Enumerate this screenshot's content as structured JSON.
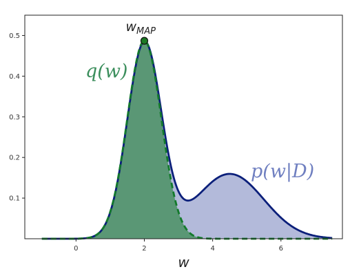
{
  "chart_data": {
    "type": "area",
    "title": "",
    "xlabel": "w",
    "ylabel": "",
    "xlim": [
      -1.5,
      7.8
    ],
    "ylim": [
      0,
      0.55
    ],
    "x_ticks": [
      0,
      2,
      4,
      6
    ],
    "y_ticks": [
      0.1,
      0.2,
      0.3,
      0.4,
      0.5
    ],
    "x_tick_labels": [
      "0",
      "2",
      "4",
      "6"
    ],
    "y_tick_labels": [
      "0.1",
      "0.2",
      "0.3",
      "0.4",
      "0.5"
    ],
    "grid": false,
    "x_range": [
      -1,
      7.5
    ],
    "series": [
      {
        "id": "posterior",
        "label": "p(w|D)",
        "style": "solid",
        "components": [
          {
            "weight": 0.6,
            "mean": 2.0,
            "sd": 0.5
          },
          {
            "weight": 0.4,
            "mean": 4.5,
            "sd": 1.0
          }
        ],
        "line_color": "#0b1f7a",
        "fill_color": "#b3bada",
        "label_color": "#6f7fc0"
      },
      {
        "id": "approximation",
        "label": "q(w)",
        "style": "dashed",
        "components": [
          {
            "weight": 0.61,
            "mean": 2.0,
            "sd": 0.5
          }
        ],
        "line_color": "#137a2b",
        "fill_color": "#5a9775",
        "label_color": "#3b8e5c"
      }
    ],
    "annotations": [
      {
        "id": "map-point",
        "label": "w_{MAP}",
        "main": "w",
        "sub": "MAP",
        "x": 2.0,
        "y": 0.487,
        "marker_color": "#1d7a25"
      }
    ]
  }
}
